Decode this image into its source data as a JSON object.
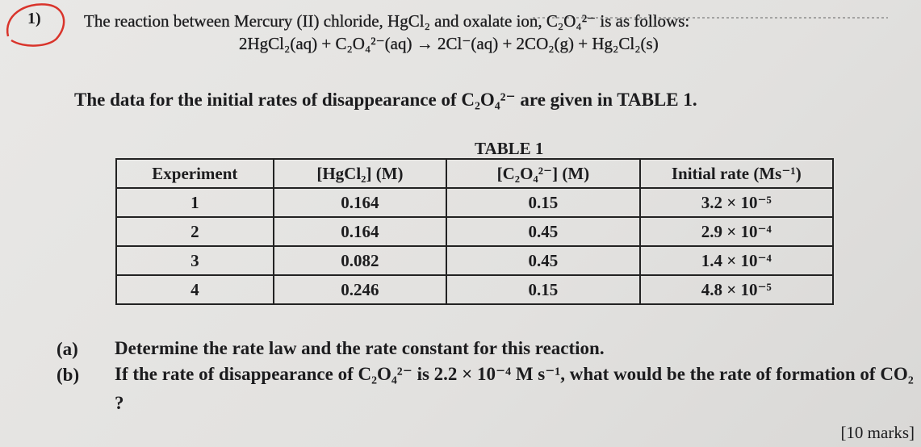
{
  "question": {
    "number": "1)",
    "intro": "The reaction between Mercury (II) chloride, HgCl₂ and oxalate ion, C₂O₄²⁻ is as follows:",
    "equation": "2HgCl₂(aq) + C₂O₄²⁻(aq) → 2Cl⁻(aq) + 2CO₂(g) + Hg₂Cl₂(s)",
    "data_intro": "The data for the initial rates of disappearance of C₂O₄²⁻ are given in TABLE 1.",
    "table": {
      "title": "TABLE 1",
      "headers": [
        "Experiment",
        "[HgCl₂] (M)",
        "[C₂O₄²⁻] (M)",
        "Initial rate (Ms⁻¹)"
      ],
      "rows": [
        [
          1,
          0.164,
          0.15,
          "3.2 × 10⁻⁵"
        ],
        [
          2,
          0.164,
          0.45,
          "2.9 × 10⁻⁴"
        ],
        [
          3,
          0.082,
          0.45,
          "1.4 × 10⁻⁴"
        ],
        [
          4,
          0.246,
          0.15,
          "4.8 × 10⁻⁵"
        ]
      ]
    },
    "parts": [
      {
        "label": "(a)",
        "text": "Determine the rate law and the rate constant for this reaction."
      },
      {
        "label": "(b)",
        "text": "If the rate of disappearance of C₂O₄²⁻ is 2.2 × 10⁻⁴ M s⁻¹, what would be the rate of formation of CO₂ ?"
      }
    ],
    "marks": "[10 marks]"
  }
}
